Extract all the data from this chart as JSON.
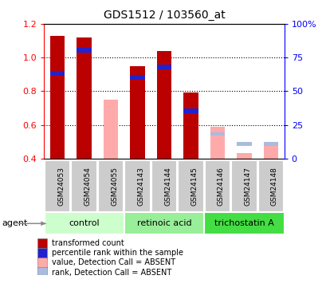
{
  "title": "GDS1512 / 103560_at",
  "samples": [
    "GSM24053",
    "GSM24054",
    "GSM24055",
    "GSM24143",
    "GSM24144",
    "GSM24145",
    "GSM24146",
    "GSM24147",
    "GSM24148"
  ],
  "groups": [
    {
      "name": "control",
      "indices": [
        0,
        1,
        2
      ],
      "facecolor": "#ccffcc"
    },
    {
      "name": "retinoic acid",
      "indices": [
        3,
        4,
        5
      ],
      "facecolor": "#99ee99"
    },
    {
      "name": "trichostatin A",
      "indices": [
        6,
        7,
        8
      ],
      "facecolor": "#44dd44"
    }
  ],
  "red_values": [
    1.13,
    1.12,
    null,
    0.95,
    1.04,
    0.79,
    null,
    null,
    null
  ],
  "blue_values": [
    0.89,
    1.03,
    null,
    0.87,
    0.93,
    0.67,
    null,
    null,
    null
  ],
  "pink_values": [
    null,
    null,
    0.75,
    null,
    null,
    null,
    0.59,
    0.43,
    0.48
  ],
  "lightblue_values": [
    null,
    null,
    null,
    null,
    null,
    null,
    0.535,
    0.475,
    0.475
  ],
  "ylim": [
    0.4,
    1.2
  ],
  "y2lim": [
    0,
    100
  ],
  "yticks": [
    0.4,
    0.6,
    0.8,
    1.0,
    1.2
  ],
  "y2ticks": [
    0,
    25,
    50,
    75,
    100
  ],
  "y2ticklabels": [
    "0",
    "25",
    "50",
    "75",
    "100%"
  ],
  "bar_width": 0.55,
  "blue_bar_height": 0.028,
  "lightblue_bar_height": 0.022,
  "dotted_lines": [
    1.0,
    0.8,
    0.6
  ],
  "colors": {
    "red": "#bb0000",
    "blue": "#2222cc",
    "pink": "#ffaaaa",
    "lightblue": "#aabbdd",
    "sample_bg": "#cccccc"
  },
  "legend_items": [
    {
      "label": "transformed count",
      "color": "#bb0000"
    },
    {
      "label": "percentile rank within the sample",
      "color": "#2222cc"
    },
    {
      "label": "value, Detection Call = ABSENT",
      "color": "#ffaaaa"
    },
    {
      "label": "rank, Detection Call = ABSENT",
      "color": "#aabbdd"
    }
  ]
}
